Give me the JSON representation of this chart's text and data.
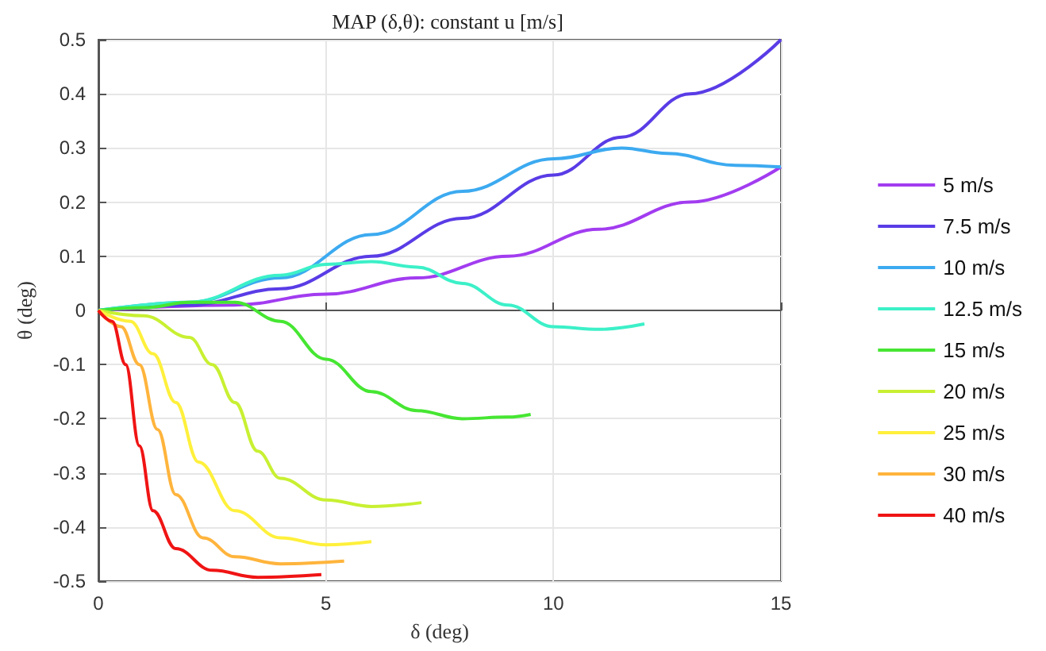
{
  "chart_data": {
    "type": "line",
    "title": "MAP (δ,θ): constant u [m/s]",
    "xlabel": "δ (deg)",
    "ylabel": "θ (deg)",
    "xlim": [
      0,
      15
    ],
    "xticks": [
      0,
      5,
      10,
      15
    ],
    "ylim": [
      -0.5,
      0.5
    ],
    "yticks": [
      -0.5,
      -0.4,
      -0.3,
      -0.2,
      -0.1,
      0,
      0.1,
      0.2,
      0.3,
      0.4,
      0.5
    ],
    "grid": true,
    "legend": "right",
    "marker": "none",
    "line_style": "solid",
    "series": [
      {
        "name": "5 m/s",
        "color": "#a23cf0",
        "x": [
          0,
          3,
          5,
          7,
          9,
          11,
          13,
          15
        ],
        "values": [
          0,
          0.01,
          0.03,
          0.06,
          0.1,
          0.15,
          0.2,
          0.265
        ]
      },
      {
        "name": "7.5 m/s",
        "color": "#5a3ce6",
        "x": [
          0,
          2,
          4,
          6,
          8,
          10,
          11.5,
          13,
          15
        ],
        "values": [
          0,
          0.01,
          0.04,
          0.1,
          0.17,
          0.25,
          0.32,
          0.4,
          0.5
        ]
      },
      {
        "name": "10 m/s",
        "color": "#3caaf0",
        "x": [
          0,
          2,
          4,
          6,
          8,
          10,
          11.5,
          12.5,
          14,
          15
        ],
        "values": [
          0,
          0.015,
          0.06,
          0.14,
          0.22,
          0.28,
          0.3,
          0.29,
          0.268,
          0.265
        ]
      },
      {
        "name": "12.5 m/s",
        "color": "#3cf0c8",
        "x": [
          0,
          2,
          4,
          5,
          6,
          7,
          8,
          9,
          10,
          11,
          12
        ],
        "values": [
          0,
          0.015,
          0.065,
          0.085,
          0.09,
          0.08,
          0.05,
          0.01,
          -0.03,
          -0.035,
          -0.025
        ]
      },
      {
        "name": "15 m/s",
        "color": "#46e632",
        "x": [
          0,
          1,
          2,
          3,
          4,
          5,
          6,
          7,
          8,
          9,
          9.5
        ],
        "values": [
          0,
          0.005,
          0.015,
          0.015,
          -0.02,
          -0.09,
          -0.15,
          -0.185,
          -0.2,
          -0.197,
          -0.192
        ]
      },
      {
        "name": "20 m/s",
        "color": "#c8f032",
        "x": [
          0,
          1,
          2,
          2.5,
          3,
          3.5,
          4,
          5,
          6,
          7.1
        ],
        "values": [
          0,
          -0.01,
          -0.05,
          -0.1,
          -0.17,
          -0.26,
          -0.31,
          -0.35,
          -0.362,
          -0.355
        ]
      },
      {
        "name": "25 m/s",
        "color": "#fff03c",
        "x": [
          0,
          0.7,
          1.2,
          1.7,
          2.2,
          3,
          4,
          5,
          6
        ],
        "values": [
          0,
          -0.02,
          -0.08,
          -0.17,
          -0.28,
          -0.37,
          -0.42,
          -0.433,
          -0.427
        ]
      },
      {
        "name": "30 m/s",
        "color": "#ffb43c",
        "x": [
          0,
          0.5,
          0.9,
          1.3,
          1.7,
          2.3,
          3,
          4,
          5.4
        ],
        "values": [
          0,
          -0.03,
          -0.1,
          -0.22,
          -0.34,
          -0.42,
          -0.455,
          -0.468,
          -0.463
        ]
      },
      {
        "name": "40 m/s",
        "color": "#f01414",
        "x": [
          0,
          0.3,
          0.6,
          0.9,
          1.2,
          1.7,
          2.5,
          3.5,
          4.9
        ],
        "values": [
          0,
          -0.02,
          -0.1,
          -0.25,
          -0.37,
          -0.44,
          -0.48,
          -0.493,
          -0.488
        ]
      }
    ]
  }
}
